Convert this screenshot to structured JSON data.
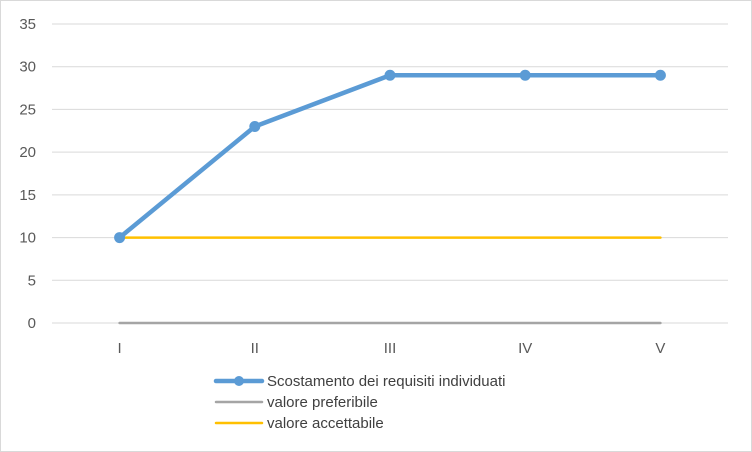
{
  "chart_data": {
    "type": "line",
    "categories": [
      "I",
      "II",
      "III",
      "IV",
      "V"
    ],
    "ylim": [
      0,
      35
    ],
    "yticks": [
      0,
      5,
      10,
      15,
      20,
      25,
      30,
      35
    ],
    "grid": true,
    "legend_position": "bottom",
    "series": [
      {
        "name": "Scostamento dei requisiti individuati",
        "values": [
          10,
          23,
          29,
          29,
          29
        ],
        "color": "#5b9bd5",
        "markers": true
      },
      {
        "name": "valore preferibile",
        "values": [
          0,
          0,
          0,
          0,
          0
        ],
        "color": "#a5a5a5",
        "markers": false
      },
      {
        "name": "valore accettabile",
        "values": [
          10,
          10,
          10,
          10,
          10
        ],
        "color": "#ffc000",
        "markers": false
      }
    ]
  }
}
